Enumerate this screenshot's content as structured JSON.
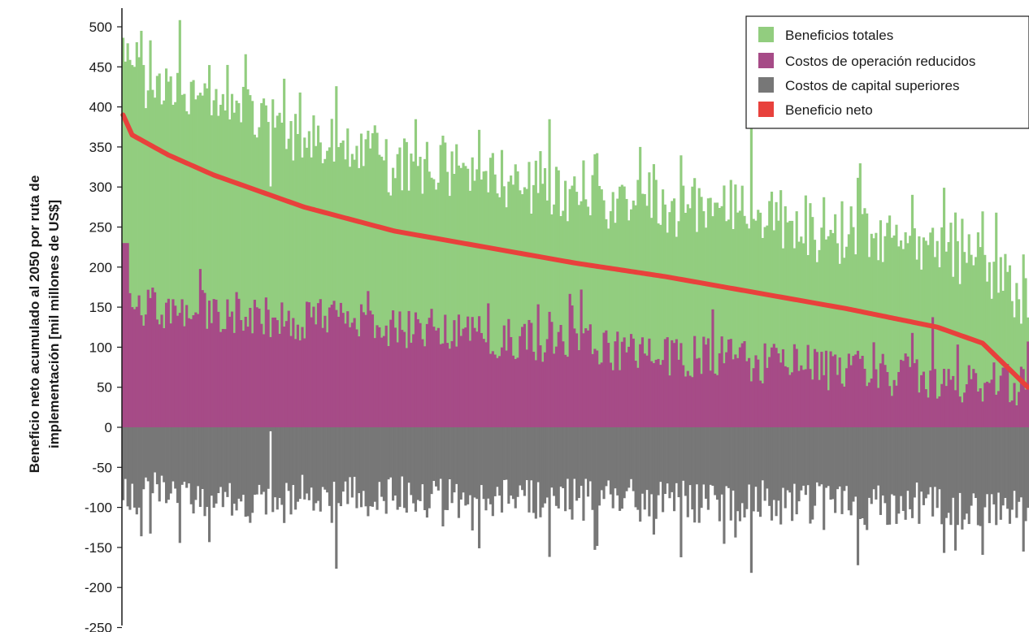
{
  "chart_data": {
    "type": "bar",
    "ylabel_lines": [
      "Beneficio neto acumulado al 2050 por ruta de",
      "implementación [mil millones de US$]"
    ],
    "xlabel": "",
    "ylim": [
      -250,
      520
    ],
    "yticks": [
      500,
      450,
      400,
      350,
      300,
      250,
      200,
      150,
      100,
      50,
      0,
      -50,
      -100,
      -150,
      -200,
      -250
    ],
    "legend_position": "top-right",
    "grid": false,
    "series_count_per_series": 400,
    "colors": {
      "total": "#92cd7f",
      "opex": "#a64b87",
      "capex": "#777777",
      "net": "#e8413c"
    },
    "series": [
      {
        "name": "Beneficios totales",
        "type": "bar",
        "start_value": 395,
        "end_value": 150,
        "approx_peak": 495,
        "note_values": "approximate; per-path values not individually labeled"
      },
      {
        "name": "Costos de operación reducidos",
        "type": "bar",
        "start_value": 230,
        "end_value": 25,
        "approx_peak": 232
      },
      {
        "name": "Costos de capital superiores",
        "type": "bar",
        "start_value": -70,
        "end_value": -95,
        "approx_min": -225
      },
      {
        "name": "Beneficio neto",
        "type": "line",
        "points": [
          [
            0,
            390
          ],
          [
            0.01,
            365
          ],
          [
            0.05,
            340
          ],
          [
            0.1,
            315
          ],
          [
            0.2,
            275
          ],
          [
            0.3,
            245
          ],
          [
            0.4,
            225
          ],
          [
            0.5,
            205
          ],
          [
            0.6,
            188
          ],
          [
            0.7,
            168
          ],
          [
            0.8,
            148
          ],
          [
            0.9,
            125
          ],
          [
            0.95,
            105
          ],
          [
            1.0,
            50
          ]
        ]
      }
    ]
  },
  "legend": {
    "items": [
      {
        "label": "Beneficios totales",
        "color": "#92cd7f"
      },
      {
        "label": "Costos de operación reducidos",
        "color": "#a64b87"
      },
      {
        "label": "Costos de capital superiores",
        "color": "#777777"
      },
      {
        "label": "Beneficio neto",
        "color": "#e8413c"
      }
    ]
  }
}
